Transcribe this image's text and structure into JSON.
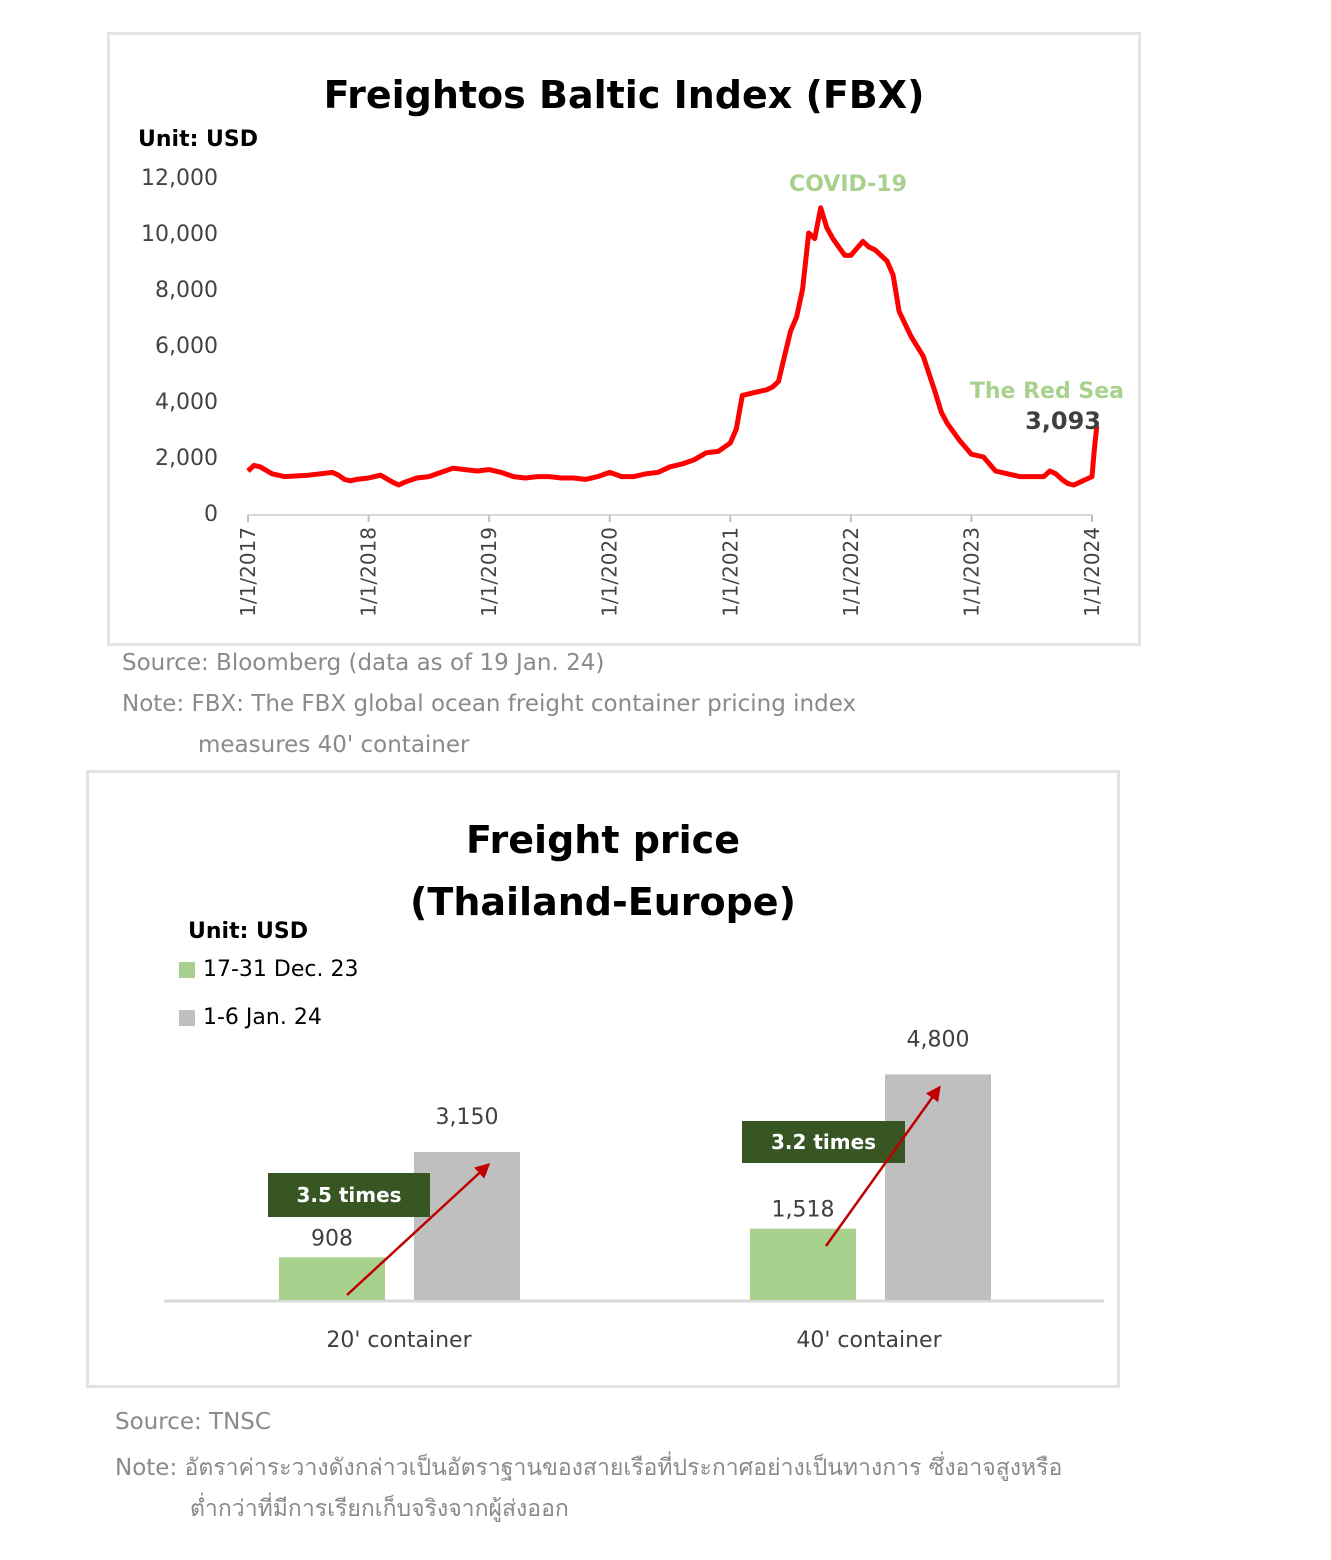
{
  "chart_data": [
    {
      "type": "line",
      "title": "Freightos Baltic Index (FBX)",
      "unit_label": "Unit: USD",
      "ylim": [
        0,
        12000
      ],
      "yticks": [
        "0",
        "2,000",
        "4,000",
        "6,000",
        "8,000",
        "10,000",
        "12,000"
      ],
      "x_tick_labels": [
        "1/1/2017",
        "1/1/2018",
        "1/1/2019",
        "1/1/2020",
        "1/1/2021",
        "1/1/2022",
        "1/1/2023",
        "1/1/2024"
      ],
      "series_color": "#ff0000",
      "x": [
        2017.0,
        2017.05,
        2017.1,
        2017.2,
        2017.3,
        2017.5,
        2017.6,
        2017.7,
        2017.75,
        2017.8,
        2017.85,
        2017.9,
        2018.0,
        2018.05,
        2018.1,
        2018.2,
        2018.25,
        2018.3,
        2018.4,
        2018.5,
        2018.6,
        2018.7,
        2018.8,
        2018.9,
        2019.0,
        2019.1,
        2019.2,
        2019.3,
        2019.4,
        2019.5,
        2019.6,
        2019.7,
        2019.8,
        2019.9,
        2020.0,
        2020.1,
        2020.2,
        2020.3,
        2020.4,
        2020.5,
        2020.6,
        2020.7,
        2020.8,
        2020.9,
        2021.0,
        2021.05,
        2021.1,
        2021.2,
        2021.3,
        2021.35,
        2021.4,
        2021.45,
        2021.5,
        2021.55,
        2021.6,
        2021.65,
        2021.7,
        2021.75,
        2021.8,
        2021.85,
        2021.9,
        2021.95,
        2022.0,
        2022.1,
        2022.15,
        2022.2,
        2022.3,
        2022.35,
        2022.4,
        2022.5,
        2022.6,
        2022.7,
        2022.75,
        2022.8,
        2022.9,
        2023.0,
        2023.1,
        2023.2,
        2023.3,
        2023.4,
        2023.5,
        2023.6,
        2023.65,
        2023.7,
        2023.75,
        2023.8,
        2023.85,
        2023.9,
        2023.95,
        2024.0,
        2024.02,
        2024.04
      ],
      "values": [
        1500,
        1700,
        1650,
        1400,
        1300,
        1350,
        1400,
        1450,
        1350,
        1200,
        1150,
        1200,
        1250,
        1300,
        1350,
        1100,
        1000,
        1100,
        1250,
        1300,
        1450,
        1600,
        1550,
        1500,
        1550,
        1450,
        1300,
        1250,
        1300,
        1300,
        1250,
        1250,
        1200,
        1300,
        1450,
        1300,
        1300,
        1400,
        1450,
        1650,
        1750,
        1900,
        2150,
        2200,
        2500,
        3000,
        4200,
        4300,
        4400,
        4500,
        4700,
        5600,
        6500,
        7000,
        8000,
        10000,
        9800,
        10900,
        10200,
        9800,
        9500,
        9200,
        9200,
        9700,
        9500,
        9400,
        9000,
        8500,
        7200,
        6300,
        5600,
        4300,
        3600,
        3200,
        2600,
        2100,
        2000,
        1500,
        1400,
        1300,
        1300,
        1300,
        1500,
        1400,
        1200,
        1050,
        1000,
        1100,
        1200,
        1300,
        2300,
        3093
      ],
      "annotations": [
        {
          "text": "COVID-19",
          "color": "#a9d18e"
        },
        {
          "text": "The Red Sea",
          "color": "#a9d18e"
        },
        {
          "text": "3,093",
          "color": "#404040"
        }
      ]
    },
    {
      "type": "bar",
      "title_line1": "Freight price",
      "title_line2": "(Thailand-Europe)",
      "unit_label": "Unit: USD",
      "categories": [
        "20' container",
        "40' container"
      ],
      "series": [
        {
          "name": "17-31 Dec. 23",
          "color": "#a9d18e",
          "values": [
            908,
            1518
          ],
          "value_labels": [
            "908",
            "1,518"
          ]
        },
        {
          "name": "1-6 Jan. 24",
          "color": "#bfbfbf",
          "values": [
            3150,
            4800
          ],
          "value_labels": [
            "3,150",
            "4,800"
          ]
        }
      ],
      "multipliers": [
        "3.5 times",
        "3.2 times"
      ],
      "multiplier_box_color": "#375623",
      "arrow_color": "#c00000",
      "ylim": [
        0,
        5000
      ]
    }
  ],
  "notes": {
    "source1": "Source: Bloomberg (data as of 19 Jan. 24)",
    "note1_line1": "Note: FBX: The FBX global ocean freight container pricing index",
    "note1_line2": "measures 40' container",
    "source2": "Source: TNSC",
    "note2_line1": "Note: อัตราค่าระวางดังกล่าวเป็นอัตราฐานของสายเรือที่ประกาศอย่างเป็นทางการ ซึ่งอาจสูงหรือ",
    "note2_line2": "ต่ำกว่าที่มีการเรียกเก็บจริงจากผู้ส่งออก"
  }
}
